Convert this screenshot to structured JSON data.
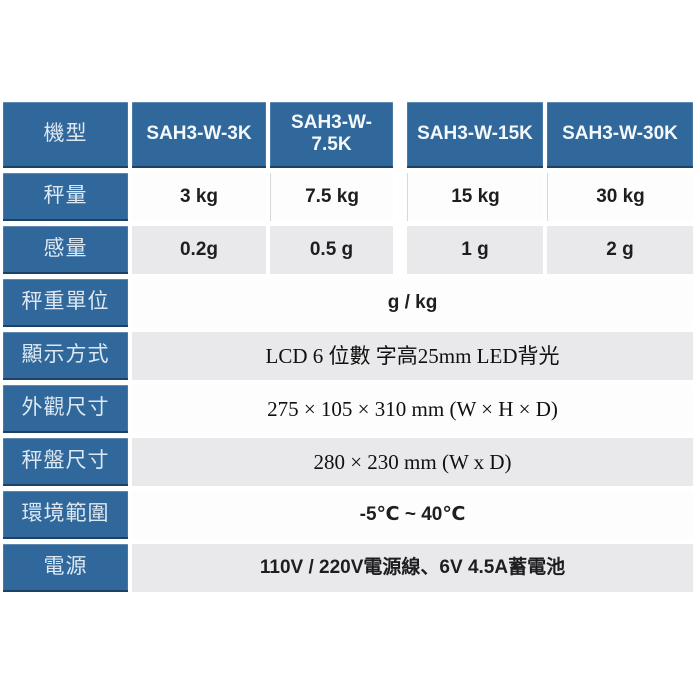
{
  "page": {
    "background": "#ffffff",
    "accent_blue": "#31689B",
    "blue_border_dark": "#1C4266",
    "row_alt_gray": "#E9E9EC",
    "header_text_color": "#F4F8FB",
    "value_text_color": "#1E1E20"
  },
  "table": {
    "header": {
      "label": "機型",
      "columns": [
        "SAH3-W-3K",
        "SAH3-W-7.5K",
        "SAH3-W-15K",
        "SAH3-W-30K"
      ]
    },
    "rows": [
      {
        "label": "秤量",
        "type": "cells",
        "cells": [
          "3 kg",
          "7.5 kg",
          "15 kg",
          "30 kg"
        ]
      },
      {
        "label": "感量",
        "type": "cells",
        "cells": [
          "0.2g",
          "0.5 g",
          "1 g",
          "2 g"
        ]
      },
      {
        "label": "秤重單位",
        "type": "merged",
        "value": "g / kg"
      },
      {
        "label": "顯示方式",
        "type": "merged",
        "value": "LCD 6 位數 字高25mm LED背光"
      },
      {
        "label": "外觀尺寸",
        "type": "merged",
        "value": "275 × 105 × 310 mm (W × H × D)"
      },
      {
        "label": "秤盤尺寸",
        "type": "merged",
        "value": "280 × 230 mm (W x D)"
      },
      {
        "label": "環境範圍",
        "type": "merged",
        "value": "-5℃ ~ 40℃"
      },
      {
        "label": "電源",
        "type": "merged",
        "value": "110V / 220V電源線、6V 4.5A蓄電池"
      }
    ]
  }
}
